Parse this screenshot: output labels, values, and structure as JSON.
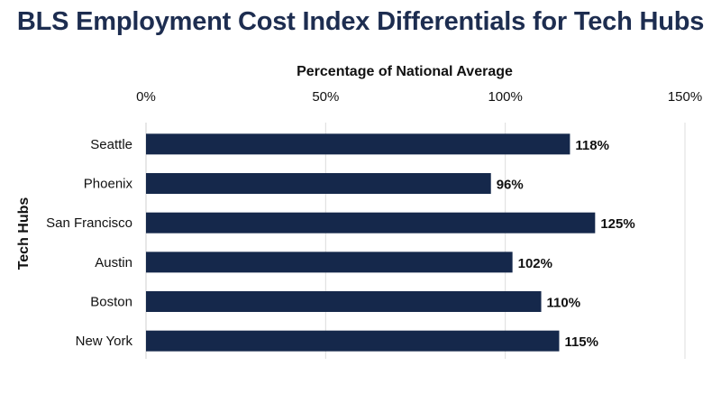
{
  "chart_data": {
    "type": "bar",
    "orientation": "horizontal",
    "title": "BLS Employment Cost Index Differentials for Tech Hubs",
    "xlabel": "Percentage of National Average",
    "ylabel": "Tech Hubs",
    "xlim": [
      0,
      150
    ],
    "xticks": [
      0,
      50,
      100,
      150
    ],
    "xtick_labels": [
      "0%",
      "50%",
      "100%",
      "150%"
    ],
    "x_axis_position": "top",
    "categories": [
      "Seattle",
      "Phoenix",
      "San Francisco",
      "Austin",
      "Boston",
      "New York"
    ],
    "values": [
      118,
      96,
      125,
      102,
      110,
      115
    ],
    "value_labels": [
      "118%",
      "96%",
      "125%",
      "102%",
      "110%",
      "115%"
    ],
    "bar_color": "#15284b",
    "grid": true
  }
}
